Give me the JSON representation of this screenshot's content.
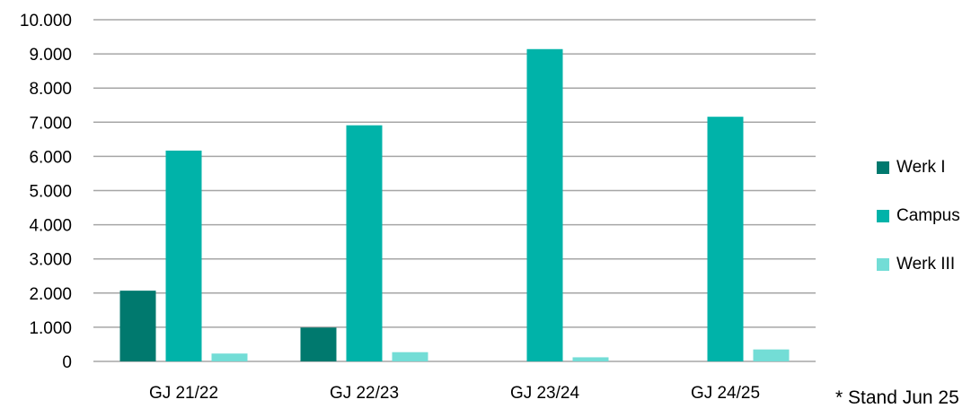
{
  "chart_data": {
    "type": "bar",
    "title": "",
    "xlabel": "",
    "ylabel": "",
    "categories": [
      "GJ 21/22",
      "GJ 22/23",
      "GJ 23/24",
      "GJ 24/25"
    ],
    "series": [
      {
        "name": "Werk I",
        "color": "#00796e",
        "values": [
          2070,
          990,
          0,
          0
        ]
      },
      {
        "name": "Campus",
        "color": "#00b3a9",
        "values": [
          6170,
          6910,
          9140,
          7160
        ]
      },
      {
        "name": "Werk III",
        "color": "#73ddd6",
        "values": [
          230,
          270,
          120,
          350
        ]
      }
    ],
    "ylim": [
      0,
      10000
    ],
    "yticks": [
      "0",
      "1.000",
      "2.000",
      "3.000",
      "4.000",
      "5.000",
      "6.000",
      "7.000",
      "8.000",
      "9.000",
      "10.000"
    ],
    "grid": true,
    "legend_position": "right"
  },
  "footnote": "* Stand Jun 25"
}
